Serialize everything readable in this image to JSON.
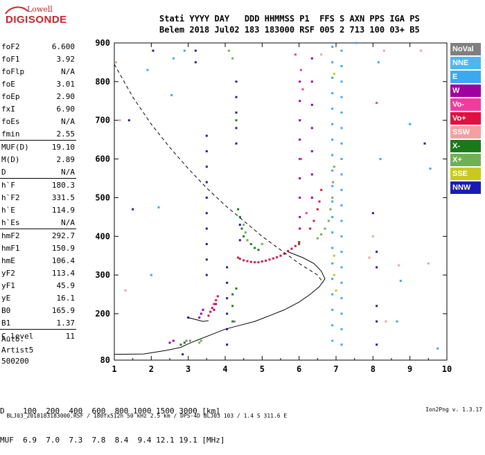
{
  "logo": {
    "line1": "Lowell",
    "line2": "DIGISONDE"
  },
  "header": {
    "line1": "Stati YYYY DAY   DDD HHMMSS P1  FFS S AXN PPS IGA PS",
    "line2": "Belem 2018 Jul02 183 183000 RSF 005 2 713 100 03+ B5"
  },
  "params_groups": [
    [
      [
        "foF2",
        "6.600"
      ],
      [
        "foF1",
        "3.92"
      ],
      [
        "foFlp",
        "N/A"
      ],
      [
        "foE",
        "3.01"
      ],
      [
        "foEp",
        "2.90"
      ],
      [
        "fxI",
        "6.90"
      ],
      [
        "foEs",
        "N/A"
      ],
      [
        "fmin",
        "2.55"
      ]
    ],
    [
      [
        "MUF(D)",
        "19.10"
      ],
      [
        "M(D)",
        "2.89"
      ],
      [
        "D",
        "N/A"
      ]
    ],
    [
      [
        "h`F",
        "180.3"
      ],
      [
        "h`F2",
        "331.5"
      ],
      [
        "h`E",
        "114.9"
      ],
      [
        "h`Es",
        "N/A"
      ]
    ],
    [
      [
        "hmF2",
        "292.7"
      ],
      [
        "hmF1",
        "150.9"
      ],
      [
        "hmE",
        "106.4"
      ],
      [
        "yF2",
        "113.4"
      ],
      [
        "yF1",
        "45.9"
      ],
      [
        "yE",
        "16.1"
      ],
      [
        "B0",
        "165.9"
      ],
      [
        "B1",
        "1.37"
      ]
    ],
    [
      [
        "C-level",
        "11"
      ]
    ]
  ],
  "auto": {
    "line1": "Auto:",
    "line2": "Artist5",
    "line3": "500200"
  },
  "legend": [
    {
      "label": "NoVal",
      "color": "#7f7f7f"
    },
    {
      "label": "NNE",
      "color": "#4bb8f0"
    },
    {
      "label": "E",
      "color": "#3ba8ef"
    },
    {
      "label": "W",
      "color": "#a0009f"
    },
    {
      "label": "Vo-",
      "color": "#ee3ca0"
    },
    {
      "label": "Vo+",
      "color": "#e01040"
    },
    {
      "label": "SSW",
      "color": "#f4a0a0"
    },
    {
      "label": "X-",
      "color": "#1a7a1a"
    },
    {
      "label": "X+",
      "color": "#6db24f"
    },
    {
      "label": "SSE",
      "color": "#c8c81e"
    },
    {
      "label": "NNW",
      "color": "#1a1ab4"
    }
  ],
  "muf_table": {
    "d_line": "D    100  200  400  600  800 1000 1500 3000 [km]",
    "muf_line": "MUF  6.9  7.0  7.3  7.8  8.4  9.4 12.1 19.1 [MHz]"
  },
  "footer": {
    "left": "BLJ03_2018183183000.RSF / 180fx512h 50 kHz 2.5 km / DPS-4D BLJ03 103 / 1.4 S 311.6 E",
    "right": "Ion2Png v. 1.3.17"
  },
  "chart_data": {
    "type": "scatter",
    "xlim": [
      1,
      10
    ],
    "ylim": [
      80,
      900
    ],
    "x_ticks": [
      1,
      2,
      3,
      4,
      5,
      6,
      7,
      8,
      9,
      10
    ],
    "y_ticks": [
      80,
      200,
      300,
      400,
      500,
      600,
      700,
      800,
      900
    ],
    "y_tick_labels": [
      "80",
      "200",
      "300",
      "400",
      "500",
      "600",
      "700",
      "800",
      "900"
    ],
    "grid": false,
    "series": [
      {
        "color": "#e01040",
        "points": [
          [
            4.35,
            345
          ],
          [
            4.4,
            342
          ],
          [
            4.5,
            338
          ],
          [
            4.6,
            336
          ],
          [
            4.7,
            334
          ],
          [
            4.8,
            333
          ],
          [
            4.9,
            333
          ],
          [
            5.0,
            335
          ],
          [
            5.1,
            337
          ],
          [
            5.2,
            340
          ],
          [
            5.3,
            343
          ],
          [
            5.4,
            346
          ],
          [
            5.5,
            350
          ],
          [
            5.6,
            355
          ],
          [
            5.7,
            362
          ],
          [
            5.8,
            368
          ],
          [
            5.9,
            375
          ],
          [
            6.0,
            385
          ],
          [
            6.3,
            420
          ],
          [
            6.4,
            440
          ],
          [
            6.5,
            470
          ],
          [
            6.55,
            490
          ],
          [
            6.6,
            520
          ],
          [
            3.55,
            195
          ],
          [
            3.6,
            205
          ],
          [
            3.65,
            215
          ],
          [
            3.7,
            225
          ],
          [
            3.75,
            235
          ],
          [
            3.8,
            245
          ]
        ]
      },
      {
        "color": "#a0009f",
        "points": [
          [
            6.02,
            420
          ],
          [
            6.02,
            450
          ],
          [
            6.02,
            500
          ],
          [
            6.02,
            550
          ],
          [
            6.02,
            600
          ],
          [
            6.02,
            650
          ],
          [
            6.02,
            700
          ],
          [
            6.02,
            750
          ],
          [
            6.02,
            800
          ],
          [
            6.35,
            500
          ],
          [
            6.35,
            560
          ],
          [
            6.35,
            620
          ],
          [
            6.35,
            680
          ],
          [
            6.35,
            740
          ],
          [
            6.35,
            800
          ],
          [
            6.35,
            860
          ],
          [
            3.3,
            190
          ],
          [
            3.35,
            200
          ],
          [
            3.4,
            210
          ],
          [
            3.7,
            210
          ],
          [
            3.75,
            225
          ],
          [
            2.5,
            125
          ],
          [
            2.6,
            130
          ]
        ]
      },
      {
        "color": "#3ba8ef",
        "points": [
          [
            6.9,
            130
          ],
          [
            6.9,
            170
          ],
          [
            6.9,
            210
          ],
          [
            6.9,
            250
          ],
          [
            6.9,
            290
          ],
          [
            6.9,
            330
          ],
          [
            6.9,
            370
          ],
          [
            6.9,
            410
          ],
          [
            6.9,
            450
          ],
          [
            6.9,
            490
          ],
          [
            6.9,
            530
          ],
          [
            6.9,
            570
          ],
          [
            6.9,
            610
          ],
          [
            6.9,
            650
          ],
          [
            6.9,
            690
          ],
          [
            6.9,
            730
          ],
          [
            6.9,
            770
          ],
          [
            6.9,
            810
          ],
          [
            6.9,
            850
          ],
          [
            6.9,
            890
          ],
          [
            7.15,
            120
          ],
          [
            7.15,
            160
          ],
          [
            7.15,
            200
          ],
          [
            7.15,
            240
          ],
          [
            7.15,
            280
          ],
          [
            7.15,
            320
          ],
          [
            7.15,
            360
          ],
          [
            7.15,
            400
          ],
          [
            7.15,
            440
          ],
          [
            7.15,
            480
          ],
          [
            7.15,
            520
          ],
          [
            7.15,
            560
          ],
          [
            7.15,
            600
          ],
          [
            7.15,
            640
          ],
          [
            7.15,
            680
          ],
          [
            7.15,
            720
          ],
          [
            7.15,
            760
          ],
          [
            7.15,
            800
          ],
          [
            7.15,
            840
          ],
          [
            7.15,
            880
          ],
          [
            1.9,
            830
          ],
          [
            2.6,
            860
          ],
          [
            8.15,
            850
          ],
          [
            8.2,
            600
          ],
          [
            7.55,
            900
          ],
          [
            2.0,
            300
          ],
          [
            2.2,
            475
          ],
          [
            2.55,
            765
          ],
          [
            2.9,
            880
          ],
          [
            8.75,
            285
          ],
          [
            9.0,
            690
          ],
          [
            9.55,
            575
          ],
          [
            9.75,
            110
          ],
          [
            8.65,
            180
          ]
        ]
      },
      {
        "color": "#1a1ab4",
        "points": [
          [
            3.5,
            300
          ],
          [
            3.5,
            340
          ],
          [
            3.5,
            380
          ],
          [
            3.5,
            420
          ],
          [
            3.5,
            460
          ],
          [
            3.5,
            500
          ],
          [
            3.5,
            540
          ],
          [
            3.5,
            580
          ],
          [
            3.5,
            620
          ],
          [
            3.5,
            660
          ],
          [
            4.3,
            640
          ],
          [
            4.3,
            680
          ],
          [
            4.3,
            720
          ],
          [
            4.3,
            760
          ],
          [
            4.3,
            800
          ],
          [
            3.2,
            850
          ],
          [
            3.2,
            880
          ],
          [
            4.05,
            120
          ],
          [
            4.05,
            160
          ],
          [
            4.05,
            200
          ],
          [
            4.05,
            240
          ],
          [
            4.05,
            280
          ],
          [
            4.05,
            320
          ],
          [
            4.4,
            390
          ],
          [
            4.4,
            430
          ],
          [
            8.1,
            120
          ],
          [
            8.1,
            180
          ],
          [
            8.1,
            220
          ],
          [
            8.1,
            320
          ],
          [
            8.1,
            360
          ],
          [
            2.85,
            95
          ],
          [
            3.0,
            190
          ],
          [
            1.5,
            470
          ],
          [
            1.4,
            700
          ],
          [
            2.05,
            880
          ],
          [
            8.0,
            460
          ],
          [
            9.4,
            640
          ]
        ]
      },
      {
        "color": "#1a7a1a",
        "points": [
          [
            4.8,
            370
          ],
          [
            4.9,
            365
          ],
          [
            4.7,
            380
          ],
          [
            4.6,
            390
          ],
          [
            4.5,
            400
          ],
          [
            4.45,
            420
          ],
          [
            4.4,
            450
          ],
          [
            4.35,
            470
          ],
          [
            6.0,
            380
          ],
          [
            4.2,
            180
          ],
          [
            4.2,
            220
          ],
          [
            4.2,
            250
          ],
          [
            4.3,
            265
          ],
          [
            4.3,
            700
          ],
          [
            2.9,
            125
          ],
          [
            2.8,
            120
          ]
        ]
      },
      {
        "color": "#6db24f",
        "points": [
          [
            6.5,
            395
          ],
          [
            6.6,
            405
          ],
          [
            6.7,
            420
          ],
          [
            6.8,
            440
          ],
          [
            6.85,
            470
          ],
          [
            6.9,
            500
          ],
          [
            6.92,
            540
          ],
          [
            6.95,
            580
          ],
          [
            4.5,
            430
          ],
          [
            4.55,
            410
          ],
          [
            4.6,
            390
          ],
          [
            5.0,
            380
          ],
          [
            3.3,
            125
          ],
          [
            3.35,
            130
          ],
          [
            4.1,
            880
          ],
          [
            4.2,
            860
          ]
        ]
      },
      {
        "color": "#ee3ca0",
        "points": [
          [
            6.05,
            830
          ],
          [
            6.1,
            780
          ],
          [
            6.2,
            460
          ],
          [
            5.9,
            870
          ],
          [
            8.1,
            745
          ],
          [
            6.05,
            600
          ]
        ]
      },
      {
        "color": "#f4a0a0",
        "points": [
          [
            1.05,
            850
          ],
          [
            1.15,
            700
          ],
          [
            6.6,
            870
          ],
          [
            7.9,
            345
          ],
          [
            8.3,
            880
          ],
          [
            9.3,
            880
          ],
          [
            9.5,
            330
          ],
          [
            1.3,
            260
          ],
          [
            8.35,
            180
          ],
          [
            8.0,
            400
          ],
          [
            8.7,
            325
          ]
        ]
      },
      {
        "color": "#c8c81e",
        "points": [
          [
            6.95,
            300
          ],
          [
            6.95,
            350
          ],
          [
            6.95,
            820
          ],
          [
            7.0,
            260
          ]
        ]
      },
      {
        "color": "#7f7f7f",
        "points": [
          [
            2.95,
            130
          ],
          [
            3.05,
            130
          ],
          [
            4.25,
            180
          ]
        ]
      }
    ],
    "trace_curve": [
      [
        1.0,
        95
      ],
      [
        1.8,
        96
      ],
      [
        2.4,
        105
      ],
      [
        2.8,
        113
      ],
      [
        2.95,
        120
      ],
      [
        3.2,
        130
      ],
      [
        3.6,
        145
      ],
      [
        4.0,
        160
      ],
      [
        4.4,
        170
      ],
      [
        4.8,
        180
      ],
      [
        5.2,
        195
      ],
      [
        5.6,
        210
      ],
      [
        6.0,
        230
      ],
      [
        6.3,
        250
      ],
      [
        6.55,
        270
      ],
      [
        6.7,
        290
      ],
      [
        6.6,
        310
      ],
      [
        6.4,
        330
      ],
      [
        6.1,
        345
      ],
      [
        5.7,
        360
      ]
    ],
    "profile_curve": [
      [
        1.0,
        845
      ],
      [
        1.5,
        760
      ],
      [
        2.0,
        690
      ],
      [
        2.5,
        630
      ],
      [
        3.0,
        575
      ],
      [
        3.5,
        525
      ],
      [
        4.0,
        480
      ],
      [
        4.5,
        440
      ],
      [
        5.0,
        400
      ],
      [
        5.5,
        365
      ],
      [
        6.0,
        330
      ],
      [
        6.5,
        300
      ],
      [
        6.65,
        280
      ]
    ],
    "kink_curve": [
      [
        3.0,
        190
      ],
      [
        3.2,
        185
      ],
      [
        3.4,
        180
      ],
      [
        3.55,
        182
      ]
    ]
  }
}
